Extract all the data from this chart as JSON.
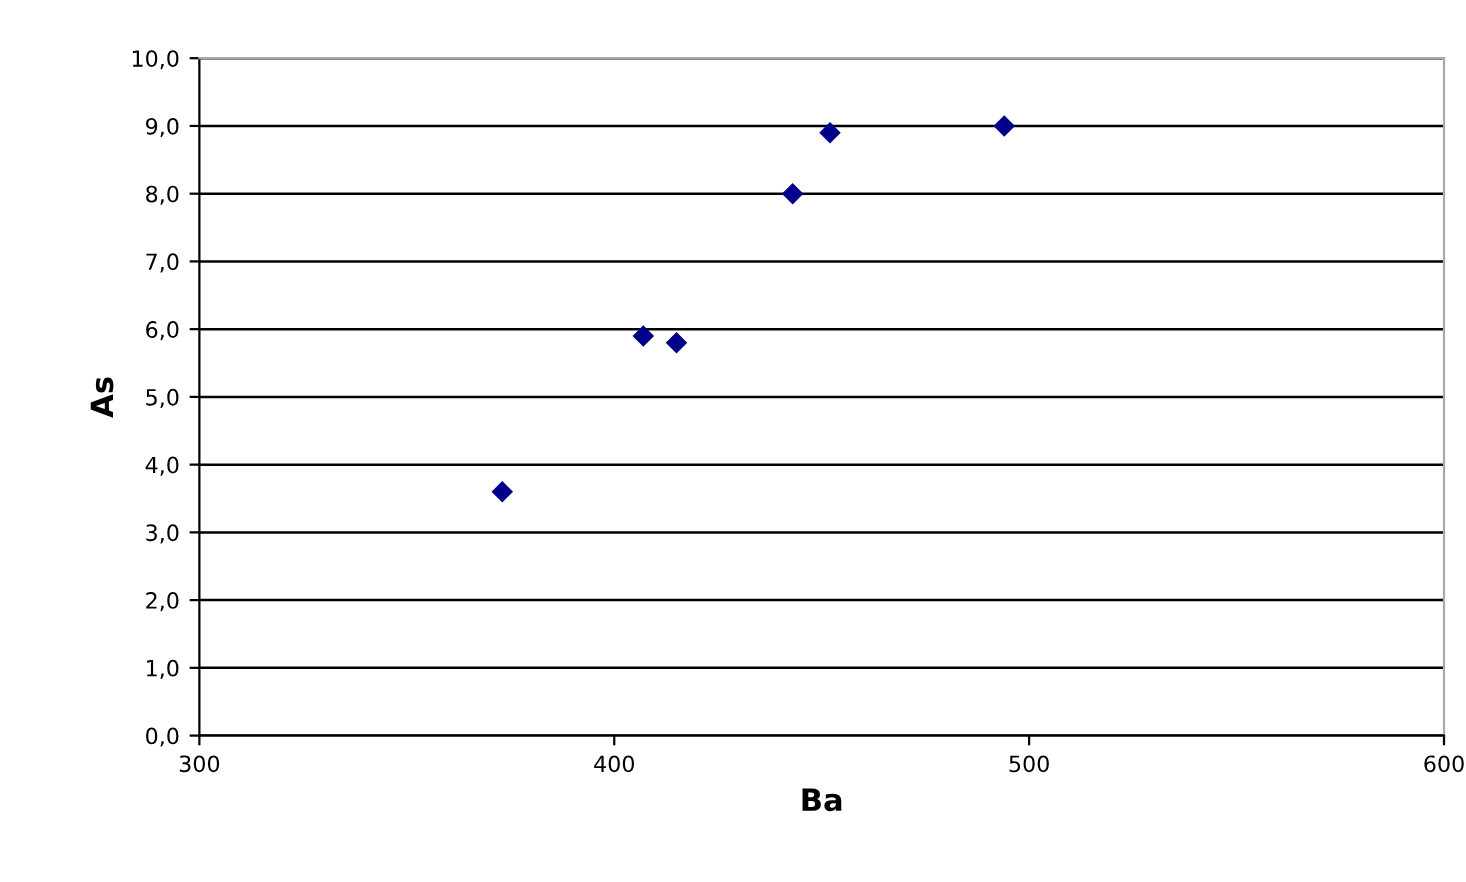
{
  "chart_data": {
    "type": "scatter",
    "xlabel": "Ba",
    "ylabel": "As",
    "x": [
      373,
      407,
      415,
      443,
      452,
      494
    ],
    "values": [
      3.6,
      5.9,
      5.8,
      8.0,
      8.9,
      9.0
    ],
    "color": "#00008b",
    "marker": "diamond",
    "xlim": [
      300,
      600
    ],
    "xticks": [
      300,
      400,
      500,
      600
    ],
    "ylim": [
      0,
      10
    ],
    "yticks": [
      {
        "value": 0,
        "label": "0,0"
      },
      {
        "value": 1,
        "label": "1,0"
      },
      {
        "value": 2,
        "label": "2,0"
      },
      {
        "value": 3,
        "label": "3,0"
      },
      {
        "value": 4,
        "label": "4,0"
      },
      {
        "value": 5,
        "label": "5,0"
      },
      {
        "value": 6,
        "label": "6,0"
      },
      {
        "value": 7,
        "label": "7,0"
      },
      {
        "value": 8,
        "label": "8,0"
      },
      {
        "value": 9,
        "label": "9,0"
      },
      {
        "value": 10,
        "label": "10,0"
      }
    ],
    "grid": "y",
    "legend": false
  }
}
